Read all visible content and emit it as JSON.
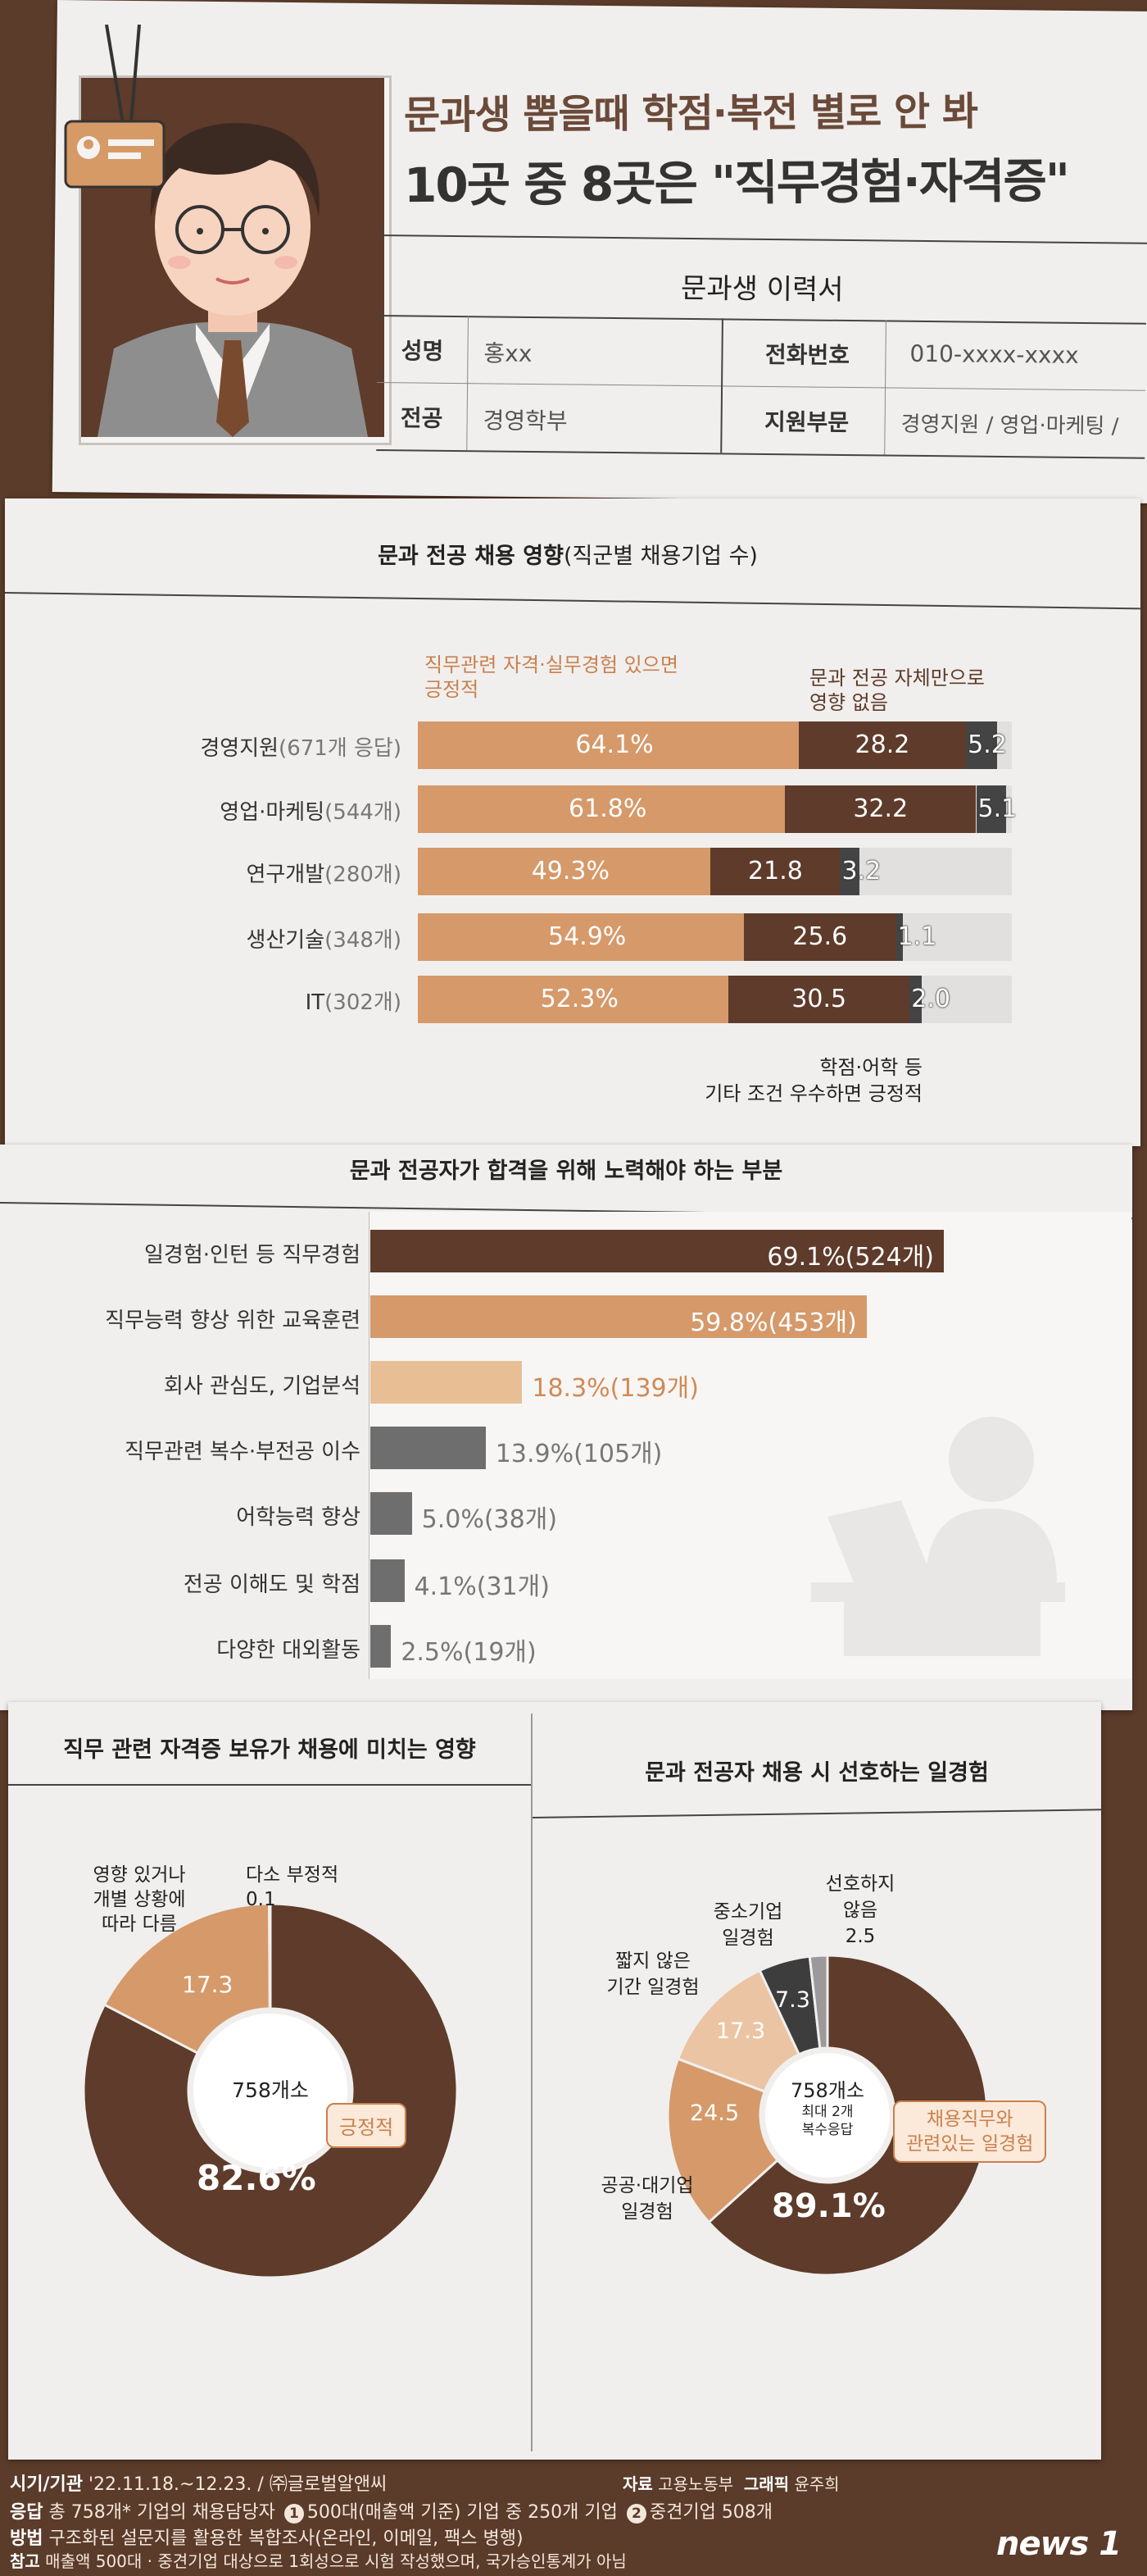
{
  "header": {
    "title_line1": "문과생 뽑을때 학점·복전 별로 안 봐",
    "title_line2": "10곳 중 8곳은 \"직무경험·자격증\""
  },
  "resume": {
    "heading": "문과생 이력서",
    "name_label": "성명",
    "name_value": "홍xx",
    "phone_label": "전화번호",
    "phone_value": "010-xxxx-xxxx",
    "major_label": "전공",
    "major_value": "경영학부",
    "dept_label": "지원부문",
    "dept_value": "경영지원 / 영업·마케팅 /"
  },
  "chart_data": [
    {
      "type": "bar",
      "title": "문과 전공 채용 영향",
      "title_suffix": "(직군별 채용기업 수)",
      "orientation": "horizontal",
      "stacked": true,
      "categories": [
        "경영지원",
        "영업·마케팅",
        "연구개발",
        "생산기술",
        "IT"
      ],
      "category_counts": [
        "(671개 응답)",
        "(544개)",
        "(280개)",
        "(348개)",
        "(302개)"
      ],
      "series": [
        {
          "name": "직무관련 자격·실무경험 있으면 긍정적",
          "values": [
            64.1,
            61.8,
            49.3,
            54.9,
            52.3
          ],
          "color": "#d5996a"
        },
        {
          "name": "문과 전공 자체만으로 영향 없음",
          "values": [
            28.2,
            32.2,
            21.8,
            25.6,
            30.5
          ],
          "color": "#5e3b2a"
        },
        {
          "name": "학점·어학 등 기타 조건 우수하면 긍정적",
          "values": [
            5.2,
            5.1,
            3.2,
            1.1,
            2.0
          ],
          "color": "#444444"
        }
      ],
      "value_labels": [
        [
          "64.1%",
          "28.2",
          "5.2"
        ],
        [
          "61.8%",
          "32.2",
          "5.1"
        ],
        [
          "49.3%",
          "21.8",
          "3.2"
        ],
        [
          "54.9%",
          "25.6",
          "1.1"
        ],
        [
          "52.3%",
          "30.5",
          "2.0"
        ]
      ],
      "legend": {
        "positive_line1": "직무관련 자격·실무경험 있으면",
        "positive_line2": "긍정적",
        "none_line1": "문과 전공 자체만으로",
        "none_line2": "영향 없음",
        "other_line1": "학점·어학 등",
        "other_line2": "기타 조건 우수하면 긍정적"
      },
      "xlim": [
        0,
        100
      ]
    },
    {
      "type": "bar",
      "title": "문과 전공자가 합격을 위해 노력해야 하는 부분",
      "orientation": "horizontal",
      "categories": [
        "일경험·인턴 등 직무경험",
        "직무능력 향상 위한 교육훈련",
        "회사 관심도, 기업분석",
        "직무관련 복수·부전공 이수",
        "어학능력 향상",
        "전공 이해도 및 학점",
        "다양한 대외활동"
      ],
      "values": [
        69.1,
        59.8,
        18.3,
        13.9,
        5.0,
        4.1,
        2.5
      ],
      "value_labels": [
        "69.1%(524개)",
        "59.8%(453개)",
        "18.3%(139개)",
        "13.9%(105개)",
        "5.0%(38개)",
        "4.1%(31개)",
        "2.5%(19개)"
      ],
      "colors": [
        "#5e3b2a",
        "#d5996a",
        "#e8bf95",
        "#6e6e6e",
        "#6e6e6e",
        "#6e6e6e",
        "#6e6e6e"
      ],
      "xlim": [
        0,
        100
      ]
    },
    {
      "type": "pie",
      "title": "직무 관련 자격증 보유가 채용에 미치는 영향",
      "center_label": "758개소",
      "labels": [
        "긍정적",
        "영향 있거나 개별 상황에 따라 다름",
        "다소 부정적"
      ],
      "values": [
        82.6,
        17.3,
        0.1
      ],
      "value_labels": [
        "82.6%",
        "17.3",
        "0.1"
      ],
      "colors": [
        "#5e3b2a",
        "#d5996a",
        "#444444"
      ],
      "label_lines": {
        "positive": "긍정적",
        "varies_1": "영향 있거나",
        "varies_2": "개별 상황에",
        "varies_3": "따라 다름",
        "negative_1": "다소 부정적"
      }
    },
    {
      "type": "pie",
      "title": "문과 전공자 채용 시 선호하는 일경험",
      "center_label": "758개소",
      "center_sub1": "최대 2개",
      "center_sub2": "복수응답",
      "labels": [
        "채용직무와 관련있는 일경험",
        "공공·대기업 일경험",
        "짧지 않은 기간 일경험",
        "중소기업 일경험",
        "선호하지 않음"
      ],
      "values": [
        89.1,
        24.5,
        17.3,
        7.3,
        2.5
      ],
      "value_labels": [
        "89.1%",
        "24.5",
        "17.3",
        "7.3",
        "2.5"
      ],
      "colors": [
        "#5e3b2a",
        "#d5996a",
        "#ebc4a3",
        "#3d3d3d",
        "#9a9a9a"
      ],
      "label_lines": {
        "related_1": "채용직무와",
        "related_2": "관련있는 일경험",
        "public_1": "공공·대기업",
        "public_2": "일경험",
        "long_1": "짧지 않은",
        "long_2": "기간 일경험",
        "sme_1": "중소기업",
        "sme_2": "일경험",
        "none_1": "선호하지",
        "none_2": "않음"
      }
    }
  ],
  "footer": {
    "period_label": "시기/기관",
    "period_value": "'22.11.18.~12.23. / ㈜글로벌알앤씨",
    "resp_label": "응답",
    "resp_value_a": "총 758개* 기업의 채용담당자",
    "resp_num1": "1",
    "resp_value_b": "500대(매출액 기준) 기업 중 250개 기업",
    "resp_num2": "2",
    "resp_value_c": "중견기업 508개",
    "method_label": "방법",
    "method_value": "구조화된 설문지를 활용한 복합조사(온라인, 이메일, 팩스 병행)",
    "ref_label": "참고",
    "ref_value": "매출액 500대 · 중견기업 대상으로 1회성으로 시험 작성했으며, 국가승인통계가 아님",
    "source_label": "자료",
    "source_value": "고용노동부",
    "graphic_label": "그래픽",
    "graphic_value": "윤주희",
    "logo": "news 1"
  }
}
